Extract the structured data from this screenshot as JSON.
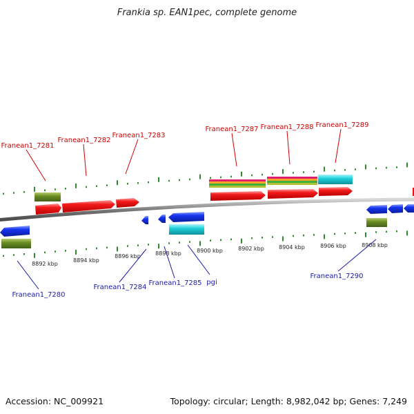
{
  "title": "Frankia sp. EAN1pec, complete genome",
  "footer": {
    "accession": "Accession: NC_009921",
    "topology": "Topology: circular; Length: 8,982,042 bp; Genes: 7,249"
  },
  "colors": {
    "backbone": "#808080",
    "forward_label": "#cc0000",
    "reverse_label": "#1a1aaa",
    "forward_gene": "#ee1111",
    "reverse_gene": "#1133ee",
    "cog_olive": "#6b8e23",
    "cog_cyan": "#1fd0dc",
    "tick": "#2e8b2e"
  },
  "axis": {
    "unit": "kbp",
    "tick_labels": [
      "8892 kbp",
      "8894 kbp",
      "8896 kbp",
      "8898 kbp",
      "8900 kbp",
      "8902 kbp",
      "8904 kbp",
      "8906 kbp",
      "8908 kbp"
    ]
  },
  "forward_genes": [
    {
      "label": "Franean1_7281"
    },
    {
      "label": "Franean1_7282"
    },
    {
      "label": "Franean1_7283"
    },
    {
      "label": "Franean1_7287"
    },
    {
      "label": "Franean1_7288"
    },
    {
      "label": "Franean1_7289"
    }
  ],
  "reverse_genes": [
    {
      "label": "Franean1_7280"
    },
    {
      "label": "Franean1_7284"
    },
    {
      "label": "Franean1_7285"
    },
    {
      "label": "pgi"
    },
    {
      "label": "Franean1_7290"
    }
  ]
}
